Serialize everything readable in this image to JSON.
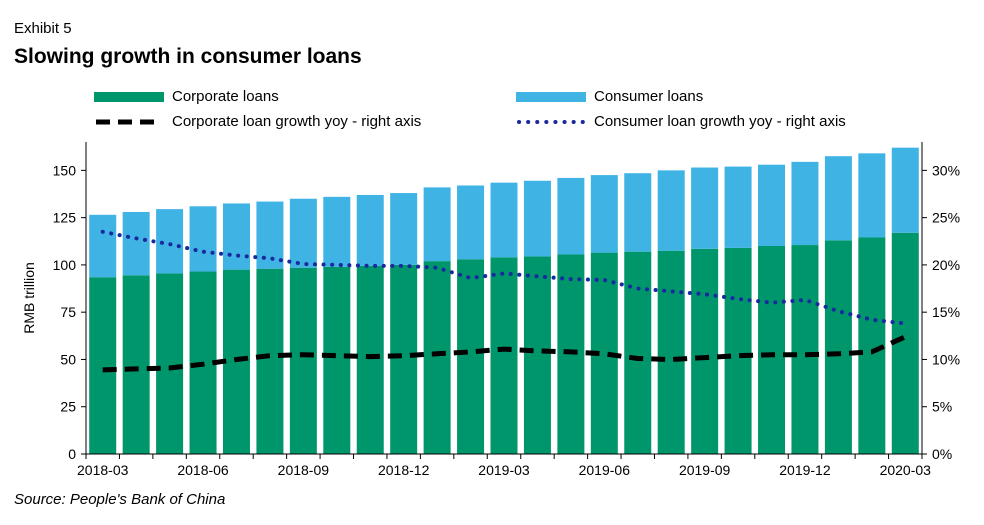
{
  "exhibit_label": "Exhibit 5",
  "title": "Slowing growth in consumer loans",
  "source": "Source: People's Bank of China",
  "legend": {
    "corporate_loans": "Corporate loans",
    "consumer_loans": "Consumer loans",
    "corporate_growth": "Corporate loan growth yoy - right axis",
    "consumer_growth": "Consumer loan growth yoy - right axis"
  },
  "colors": {
    "corporate": "#00966b",
    "consumer": "#3fb3e4",
    "corporate_growth_line": "#000000",
    "consumer_growth_line": "#1a2a9e"
  },
  "chart_data": {
    "type": "bar",
    "stacked": true,
    "title": "Slowing growth in consumer loans",
    "ylabel": "RMB trillion",
    "y2label": "",
    "ylim": [
      0,
      165
    ],
    "yticks": [
      0,
      25,
      50,
      75,
      100,
      125,
      150
    ],
    "y2lim": [
      0,
      33
    ],
    "y2ticks": [
      "0%",
      "5%",
      "10%",
      "15%",
      "20%",
      "25%",
      "30%"
    ],
    "y2tick_values": [
      0,
      5,
      10,
      15,
      20,
      25,
      30
    ],
    "xtick_labels": [
      "2018-03",
      "2018-06",
      "2018-09",
      "2018-12",
      "2019-03",
      "2019-06",
      "2019-09",
      "2019-12",
      "2020-03"
    ],
    "categories": [
      "2018-03",
      "2018-04",
      "2018-05",
      "2018-06",
      "2018-07",
      "2018-08",
      "2018-09",
      "2018-10",
      "2018-11",
      "2018-12",
      "2019-01",
      "2019-02",
      "2019-03",
      "2019-04",
      "2019-05",
      "2019-06",
      "2019-07",
      "2019-08",
      "2019-09",
      "2019-10",
      "2019-11",
      "2019-12",
      "2020-01",
      "2020-02",
      "2020-03"
    ],
    "series": [
      {
        "name": "Corporate loans",
        "kind": "bar",
        "axis": "left",
        "values": [
          93.5,
          94.5,
          95.5,
          96.5,
          97.5,
          98,
          98.5,
          99,
          99.5,
          100,
          102,
          103,
          104,
          104.5,
          105.5,
          106.5,
          107,
          107.5,
          108.5,
          109,
          110,
          110.5,
          113,
          114.5,
          117
        ]
      },
      {
        "name": "Consumer loans",
        "kind": "bar",
        "axis": "left",
        "values": [
          33,
          33.5,
          34,
          34.5,
          35,
          35.5,
          36.5,
          37,
          37.5,
          38,
          39,
          39,
          39.5,
          40,
          40.5,
          41,
          41.5,
          42.5,
          43,
          43,
          43,
          44,
          44.5,
          44.5,
          45
        ]
      },
      {
        "name": "Corporate loan growth yoy - right axis",
        "kind": "line",
        "style": "dashed",
        "axis": "right",
        "values": [
          8.9,
          9.0,
          9.1,
          9.5,
          10.0,
          10.4,
          10.5,
          10.4,
          10.3,
          10.4,
          10.6,
          10.8,
          11.1,
          10.9,
          10.8,
          10.6,
          10.1,
          10.0,
          10.2,
          10.4,
          10.5,
          10.5,
          10.6,
          10.8,
          12.4
        ]
      },
      {
        "name": "Consumer loan growth yoy - right axis",
        "kind": "line",
        "style": "dotted",
        "axis": "right",
        "values": [
          23.5,
          22.8,
          22.2,
          21.4,
          21.0,
          20.7,
          20.1,
          20.0,
          19.9,
          19.9,
          19.7,
          18.6,
          19.1,
          18.8,
          18.5,
          18.4,
          17.5,
          17.2,
          16.9,
          16.4,
          16.0,
          16.3,
          15.1,
          14.2,
          13.8
        ]
      }
    ],
    "grid": false,
    "legend_position": "top"
  }
}
